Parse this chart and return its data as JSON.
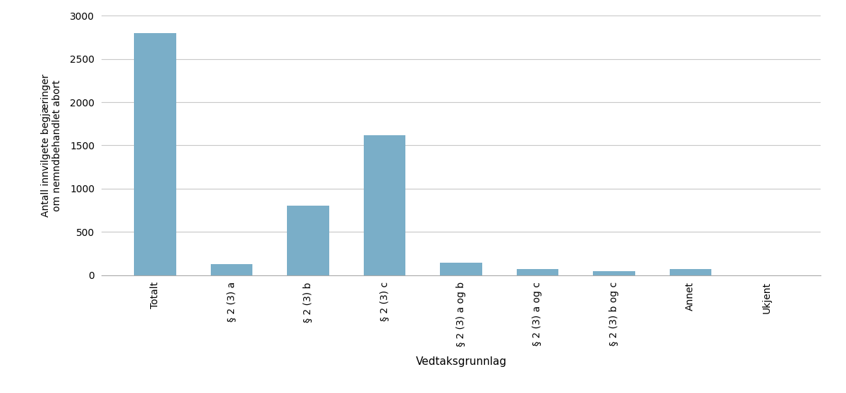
{
  "categories": [
    "Totalt",
    "§ 2 (3) a",
    "§ 2 (3) b",
    "§ 2 (3) c",
    "§ 2 (3) a og b",
    "§ 2 (3) a og c",
    "§ 2 (3) b og c",
    "Annet",
    "Ukjent"
  ],
  "values": [
    2800,
    130,
    800,
    1620,
    140,
    70,
    45,
    70,
    0
  ],
  "bar_color": "#7aaec8",
  "ylabel": "Antall innvilgete begjæringer\nom nemndbehandlet abort",
  "xlabel": "Vedtaksgrunnlag",
  "ylim": [
    0,
    3000
  ],
  "yticks": [
    0,
    500,
    1000,
    1500,
    2000,
    2500,
    3000
  ],
  "background_color": "#ffffff",
  "grid_color": "#c8c8c8",
  "bar_width": 0.55,
  "ylabel_fontsize": 10,
  "xlabel_fontsize": 11,
  "tick_fontsize": 10
}
